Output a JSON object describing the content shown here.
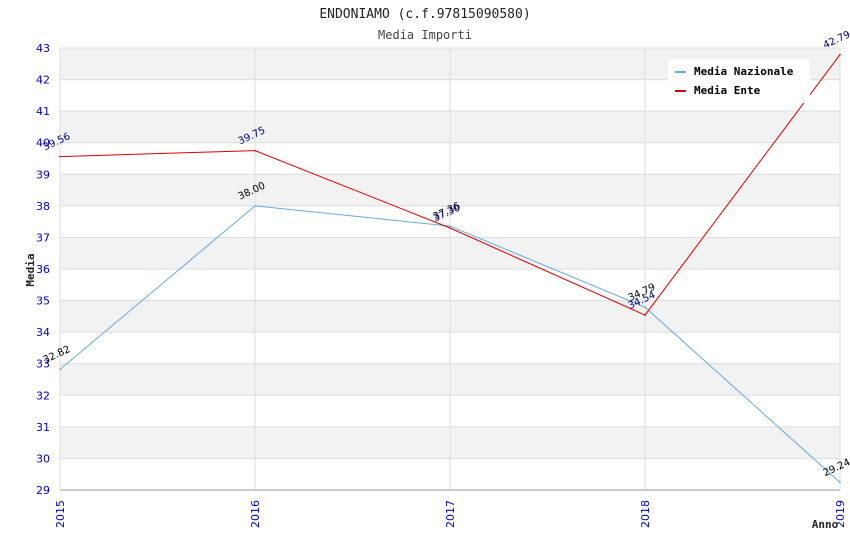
{
  "chart_data": {
    "type": "line",
    "title": "ENDONIAMO (c.f.97815090580)",
    "subtitle": "Media Importi",
    "xlabel": "Anno",
    "ylabel": "Media",
    "categories": [
      "2015",
      "2016",
      "2017",
      "2018",
      "2019"
    ],
    "ylim": [
      29,
      43
    ],
    "yticks": [
      "29",
      "30",
      "31",
      "32",
      "33",
      "34",
      "35",
      "36",
      "37",
      "38",
      "39",
      "40",
      "41",
      "42",
      "43"
    ],
    "grid": true,
    "legend_position": "top-right",
    "series": [
      {
        "name": "Media Nazionale",
        "color": "#66aadd",
        "label_color": "#000000",
        "values": [
          32.82,
          38.0,
          37.36,
          34.79,
          29.24
        ],
        "labels": [
          "32.82",
          "38.00",
          "37.36",
          "34.79",
          "29.24"
        ]
      },
      {
        "name": "Media Ente",
        "color": "#dd0000",
        "label_color": "#000080",
        "values": [
          39.56,
          39.75,
          37.3,
          34.54,
          42.79
        ],
        "labels": [
          "39.56",
          "39.75",
          "37.30",
          "34.54",
          "42.79"
        ]
      }
    ]
  }
}
